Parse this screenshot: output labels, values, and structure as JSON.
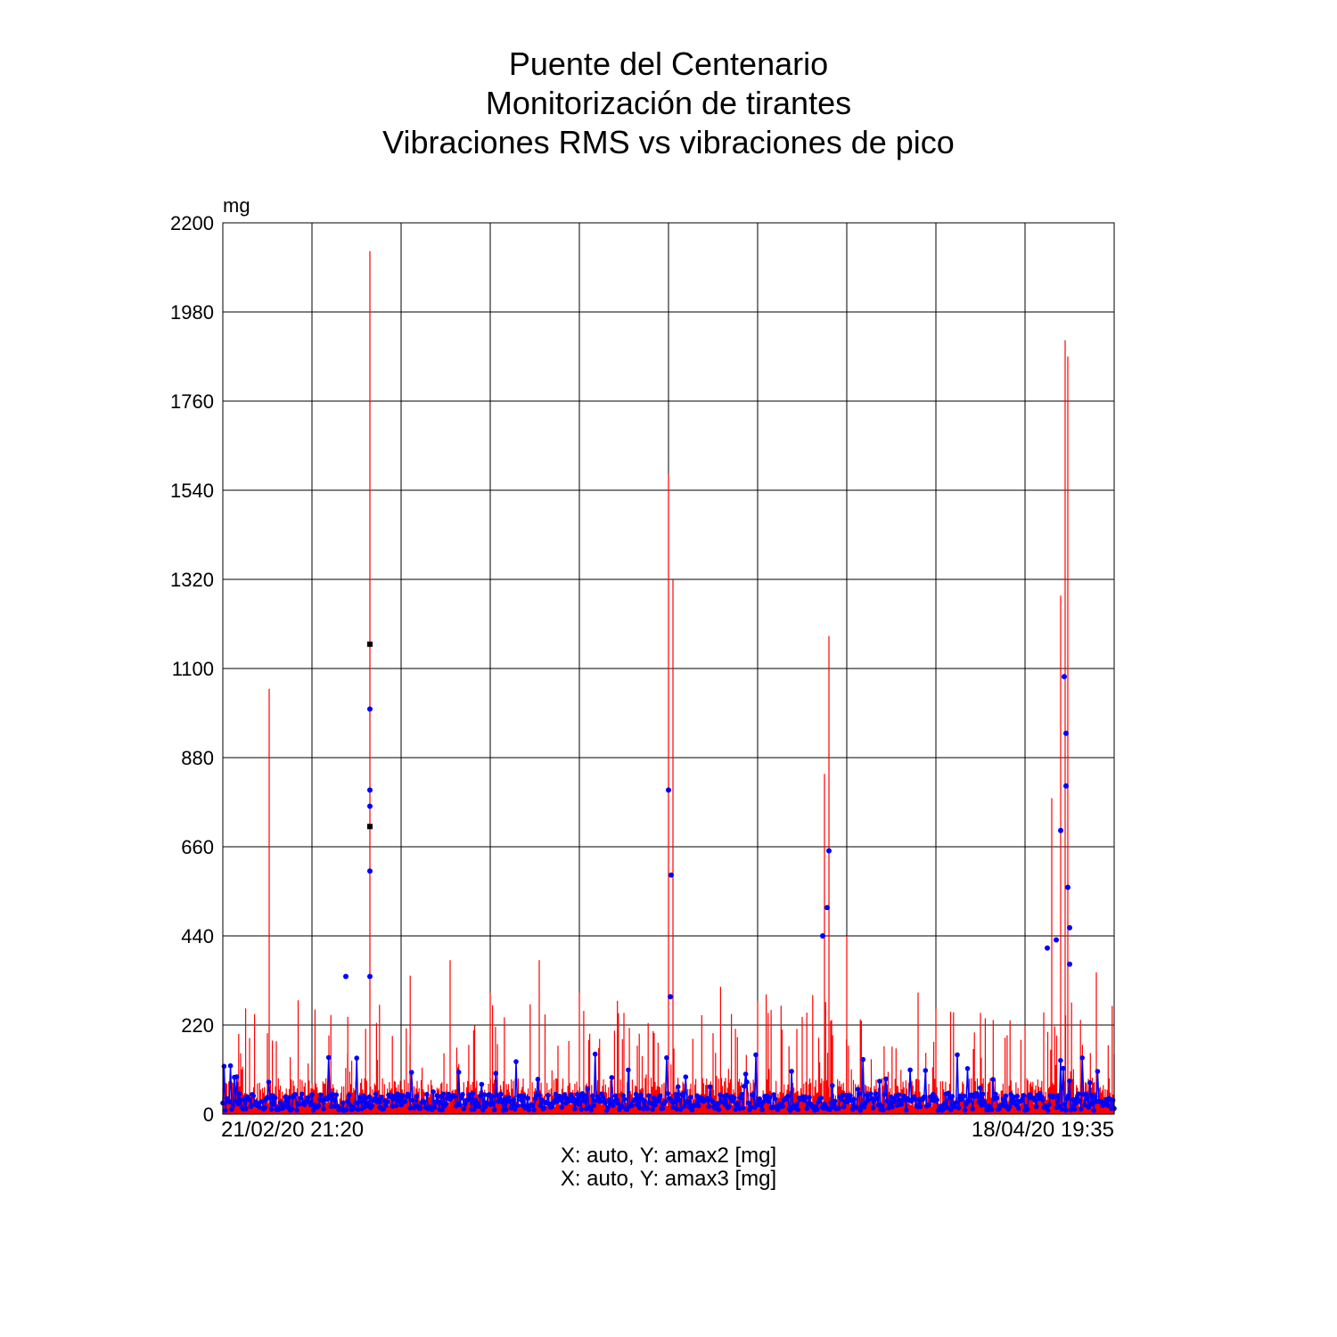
{
  "title_lines": [
    "Puente del Centenario",
    "Monitorización de tirantes",
    "Vibraciones RMS vs vibraciones de pico"
  ],
  "colors": {
    "series1": "#ff0000",
    "series2": "#0000ff",
    "grid": "#000000",
    "fill": "#ffc0c0",
    "outlier": "#000000"
  },
  "chart_data": {
    "type": "line",
    "title": "Puente del Centenario / Monitorización de tirantes / Vibraciones RMS vs vibraciones de pico",
    "ylabel": "mg",
    "xlabel": "",
    "ylim": [
      0,
      2200
    ],
    "yticks": [
      "2200",
      "1980",
      "1760",
      "1540",
      "1320",
      "1100",
      "880",
      "660",
      "440",
      "220",
      "0"
    ],
    "x_range_labels": {
      "start": "21/02/20 21:20",
      "end": "18/04/20 19:35"
    },
    "x_grid_divisions": 10,
    "grid": true,
    "legend_position": "bottom-center",
    "series": [
      {
        "legend": "X: auto,  Y: amax2 [mg]",
        "style": "vertical-lines",
        "color": "#ff0000",
        "base_level": 60,
        "peaks": [
          [
            0.02,
            150
          ],
          [
            0.05,
            200
          ],
          [
            0.052,
            1050
          ],
          [
            0.06,
            180
          ],
          [
            0.14,
            150
          ],
          [
            0.165,
            2130
          ],
          [
            0.21,
            170
          ],
          [
            0.255,
            380
          ],
          [
            0.3,
            300
          ],
          [
            0.355,
            380
          ],
          [
            0.4,
            300
          ],
          [
            0.45,
            250
          ],
          [
            0.5,
            1580
          ],
          [
            0.505,
            1320
          ],
          [
            0.55,
            200
          ],
          [
            0.6,
            280
          ],
          [
            0.65,
            240
          ],
          [
            0.675,
            840
          ],
          [
            0.68,
            1180
          ],
          [
            0.7,
            440
          ],
          [
            0.78,
            300
          ],
          [
            0.8,
            260
          ],
          [
            0.85,
            250
          ],
          [
            0.9,
            220
          ],
          [
            0.93,
            780
          ],
          [
            0.94,
            1280
          ],
          [
            0.945,
            1910
          ],
          [
            0.948,
            1870
          ],
          [
            0.98,
            350
          ]
        ]
      },
      {
        "legend": "X: auto,  Y: amax3 [mg]",
        "style": "markers",
        "color": "#0000ff",
        "base_level": 30,
        "peaks": [
          [
            0.138,
            340
          ],
          [
            0.165,
            1000
          ],
          [
            0.165,
            800
          ],
          [
            0.165,
            760
          ],
          [
            0.165,
            600
          ],
          [
            0.165,
            340
          ],
          [
            0.5,
            800
          ],
          [
            0.503,
            590
          ],
          [
            0.502,
            290
          ],
          [
            0.673,
            440
          ],
          [
            0.678,
            510
          ],
          [
            0.68,
            650
          ],
          [
            0.925,
            410
          ],
          [
            0.935,
            430
          ],
          [
            0.94,
            700
          ],
          [
            0.944,
            1080
          ],
          [
            0.946,
            940
          ],
          [
            0.946,
            810
          ],
          [
            0.948,
            560
          ],
          [
            0.95,
            460
          ],
          [
            0.95,
            370
          ]
        ]
      }
    ],
    "outliers": [
      [
        0.165,
        1160
      ],
      [
        0.165,
        710
      ]
    ]
  }
}
